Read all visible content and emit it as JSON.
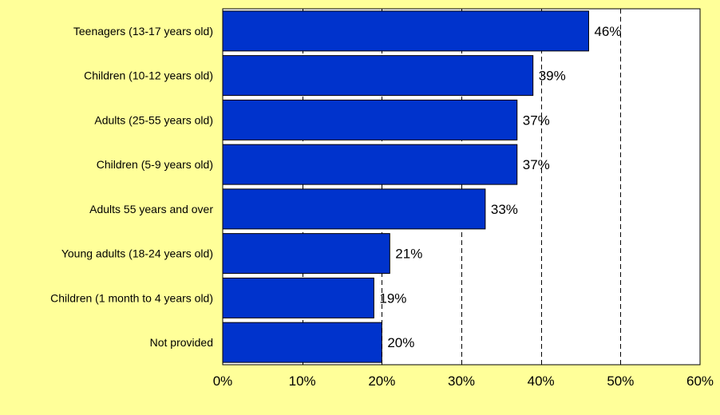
{
  "chart_data": {
    "type": "bar",
    "orientation": "horizontal",
    "categories": [
      "Teenagers (13-17 years old)",
      "Children (10-12 years old)",
      "Adults (25-55 years old)",
      "Children (5-9 years old)",
      "Adults 55 years and over",
      "Young adults (18-24 years old)",
      "Children (1 month to 4 years old)",
      "Not provided"
    ],
    "values": [
      46,
      39,
      37,
      37,
      33,
      21,
      19,
      20
    ],
    "data_labels": [
      "46%",
      "39%",
      "37%",
      "37%",
      "33%",
      "21%",
      "19%",
      "20%"
    ],
    "x_ticks": [
      "0%",
      "10%",
      "20%",
      "30%",
      "40%",
      "50%",
      "60%"
    ],
    "xlim": [
      0,
      60
    ],
    "grid": "vertical dashed lines",
    "legend": "none",
    "colors": {
      "background": "#ffff99",
      "plot_area": "#ffffff",
      "bar": "#0033cc",
      "bar_edge": "#000000"
    }
  }
}
